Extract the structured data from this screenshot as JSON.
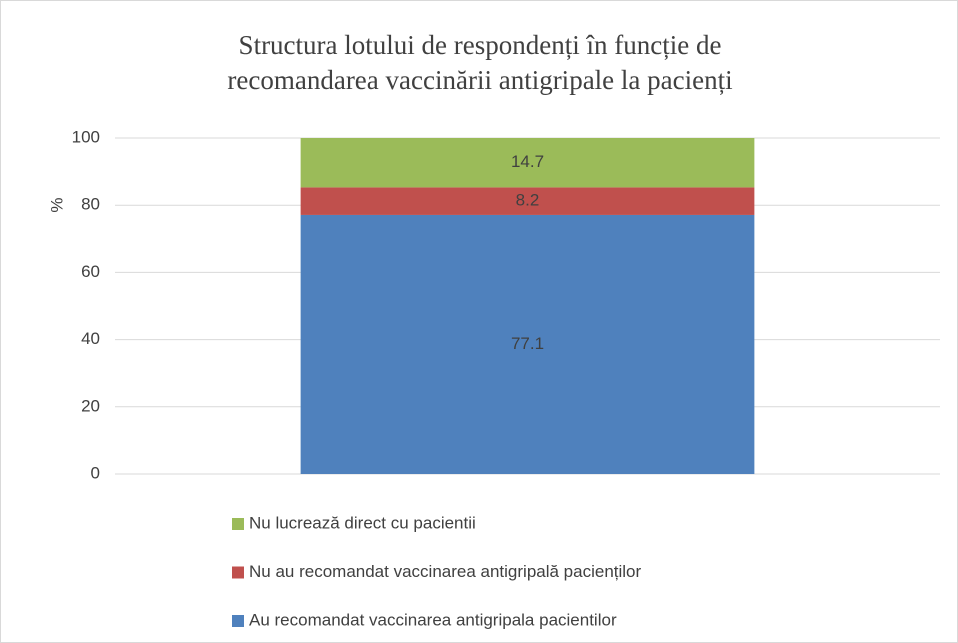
{
  "chart_data": {
    "type": "stacked_bar",
    "title": "Structura lotului de respondenți în funcție de recomandarea vaccinării antigripale la pacienți",
    "y_label": "%",
    "categories": [
      null
    ],
    "series": [
      {
        "name": "Au recomandat vaccinarea antigripala pacientilor",
        "color": "#4f81bd",
        "values": [
          77.1
        ]
      },
      {
        "name": "Nu au recomandat vaccinarea antigripală pacienților",
        "color": "#c0504d",
        "values": [
          8.2
        ]
      },
      {
        "name": "Nu lucrează direct cu pacientii",
        "color": "#9bbb59",
        "values": [
          14.7
        ]
      }
    ],
    "ylim": [
      0,
      100
    ],
    "yticks": [
      0,
      20,
      40,
      60,
      80,
      100
    ],
    "grid": true
  }
}
